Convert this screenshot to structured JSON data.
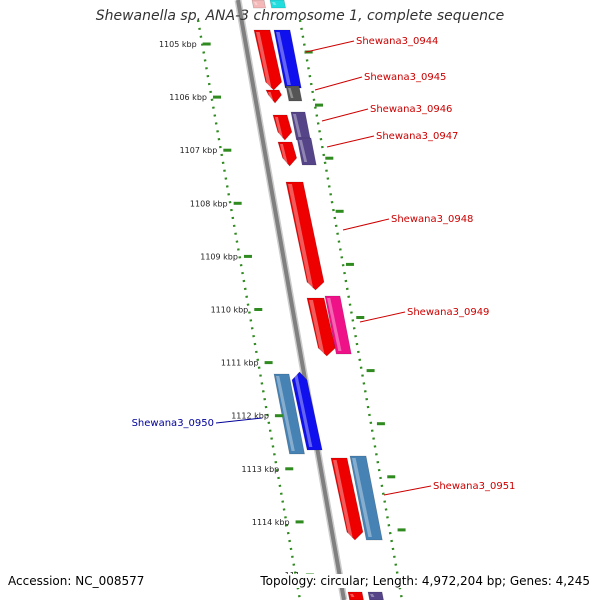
{
  "title": "Shewanella sp. ANA-3 chromosome 1, complete sequence",
  "accession_label": "Accession: NC_008577",
  "summary_label": "Topology: circular; Length: 4,972,204 bp; Genes: 4,245",
  "ticks": [
    {
      "label": "1105 kbp",
      "kbp": 1105
    },
    {
      "label": "1106 kbp",
      "kbp": 1106
    },
    {
      "label": "1107 kbp",
      "kbp": 1107
    },
    {
      "label": "1108 kbp",
      "kbp": 1108
    },
    {
      "label": "1109 kbp",
      "kbp": 1109
    },
    {
      "label": "1110 kbp",
      "kbp": 1110
    },
    {
      "label": "1111 kbp",
      "kbp": 1111
    },
    {
      "label": "1112 kbp",
      "kbp": 1112
    },
    {
      "label": "1113 kbp",
      "kbp": 1113
    },
    {
      "label": "1114 kbp",
      "kbp": 1114
    },
    {
      "label": "111",
      "kbp": 1115
    }
  ],
  "gene_labels": [
    {
      "name": "Shewana3_0944",
      "color": "#cc0000"
    },
    {
      "name": "Shewana3_0945",
      "color": "#cc0000"
    },
    {
      "name": "Shewana3_0946",
      "color": "#cc0000"
    },
    {
      "name": "Shewana3_0947",
      "color": "#cc0000"
    },
    {
      "name": "Shewana3_0948",
      "color": "#cc0000"
    },
    {
      "name": "Shewana3_0949",
      "color": "#cc0000"
    },
    {
      "name": "Shewana3_0950",
      "color": "#000099"
    },
    {
      "name": "Shewana3_0951",
      "color": "#cc0000"
    }
  ],
  "colors": {
    "backbone": "#808080",
    "tick": "#2f8a1f",
    "red_feature": "#ee0000",
    "blue_feature": "#1010ee",
    "steel_feature": "#4682b4",
    "pink_feature": "#ee1188",
    "purple_feature": "#554488",
    "gray_feature": "#555555",
    "cyan_feature": "#22dddd"
  }
}
